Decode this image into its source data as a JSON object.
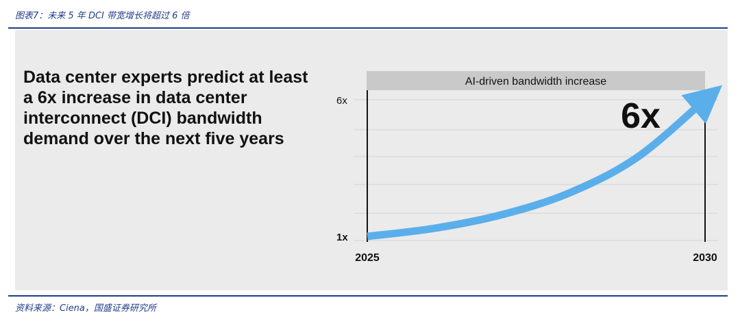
{
  "caption": "图表7：未来 5 年 DCI 带宽增长将超过 6 倍",
  "headline": "Data center experts predict at least a 6x increase in data center interconnect (DCI) bandwidth demand over the next five years",
  "source": "资料来源：Ciena，国盛证券研究所",
  "colors": {
    "rule": "#1f3c88",
    "panel": "#ebebeb",
    "banner": "#c9c9c9",
    "arrow": "#5aafea"
  },
  "chart_data": {
    "type": "line",
    "title": "",
    "banner": "AI-driven bandwidth increase",
    "annotation": "6x",
    "x_ticks": [
      "2025",
      "2030"
    ],
    "y_ticks": [
      "1x",
      "6x"
    ],
    "xlim": [
      2025,
      2030
    ],
    "ylim": [
      1,
      6
    ],
    "grid": true,
    "series": [
      {
        "x": [
          2025,
          2026,
          2027,
          2028,
          2029,
          2030
        ],
        "y": [
          1.0,
          1.3,
          1.8,
          2.6,
          3.9,
          6.0
        ]
      }
    ]
  }
}
